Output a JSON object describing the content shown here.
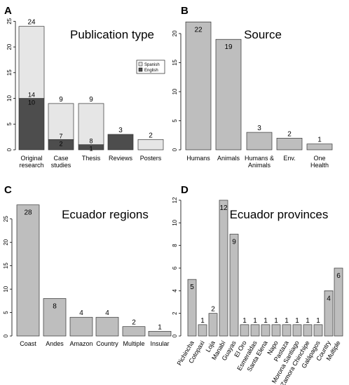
{
  "colors": {
    "spanish": "#e6e6e6",
    "english": "#4d4d4d",
    "grey_bar": "#bebebe",
    "stroke": "#333333"
  },
  "chart_data": [
    {
      "panel": "A",
      "type": "bar",
      "stacked": true,
      "title": "Publication type",
      "categories": [
        "Original\nresearch",
        "Case\nstudies",
        "Thesis",
        "Reviews",
        "Posters"
      ],
      "series": [
        {
          "name": "English",
          "values": [
            10,
            2,
            1,
            3,
            0
          ]
        },
        {
          "name": "Spanish",
          "values": [
            14,
            7,
            8,
            0,
            2
          ]
        }
      ],
      "totals": [
        24,
        9,
        9,
        3,
        2
      ],
      "yticks": [
        0,
        5,
        10,
        15,
        20,
        25
      ],
      "ylim": [
        0,
        26
      ],
      "legend": "right"
    },
    {
      "panel": "B",
      "type": "bar",
      "title": "Source",
      "categories": [
        "Humans",
        "Animals",
        "Humans &\nAnimals",
        "Env.",
        "One\nHealth"
      ],
      "values": [
        22,
        19,
        3,
        2,
        1
      ],
      "yticks": [
        0,
        5,
        10,
        15,
        20
      ],
      "ylim": [
        0,
        23
      ]
    },
    {
      "panel": "C",
      "type": "bar",
      "title": "Ecuador regions",
      "categories": [
        "Coast",
        "Andes",
        "Amazon",
        "Country",
        "Multiple",
        "Insular"
      ],
      "values": [
        28,
        8,
        4,
        4,
        2,
        1
      ],
      "yticks": [
        0,
        5,
        10,
        15,
        20,
        25
      ],
      "ylim": [
        0,
        29
      ]
    },
    {
      "panel": "D",
      "type": "bar",
      "title": "Ecuador provinces",
      "categories": [
        "Pichincha",
        "Cotopaxi",
        "Loja",
        "Manabí",
        "Guayas",
        "El Oro",
        "Esmeraldas",
        "Santa Elena",
        "Napo",
        "Pastaza",
        "Morona Santiago",
        "Zamora Chinchipe",
        "Galápagos",
        "Country",
        "Multiple"
      ],
      "values": [
        5,
        1,
        2,
        12,
        9,
        1,
        1,
        1,
        1,
        1,
        1,
        1,
        1,
        4,
        6
      ],
      "yticks": [
        0,
        2,
        4,
        6,
        8,
        10,
        12
      ],
      "ylim": [
        0,
        12
      ]
    }
  ]
}
